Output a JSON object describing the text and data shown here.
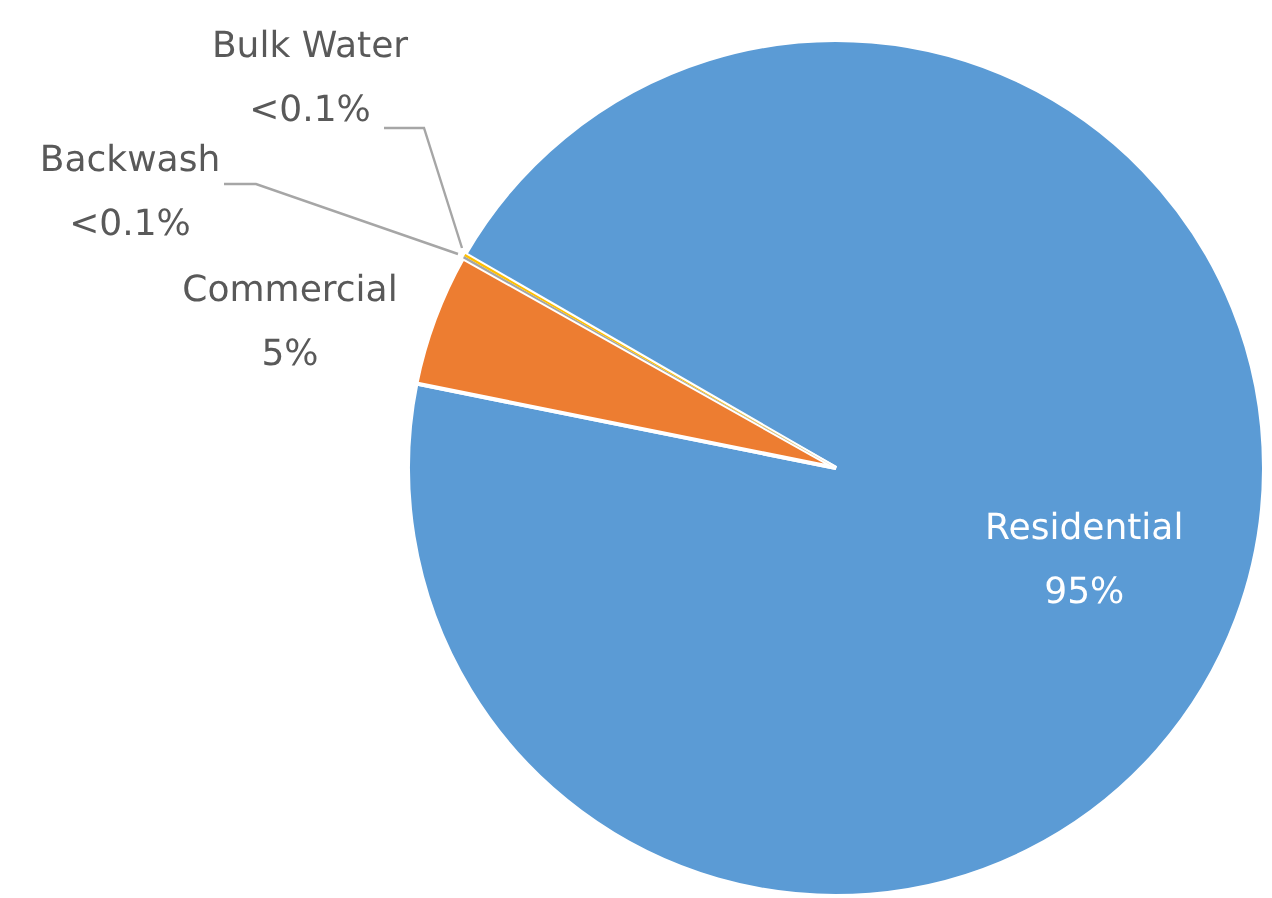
{
  "chart_data": {
    "type": "pie",
    "categories": [
      "Residential",
      "Commercial",
      "Backwash",
      "Bulk Water"
    ],
    "values": [
      95,
      5,
      0.09,
      0.09
    ],
    "colors": [
      "#5b9bd5",
      "#ed7d31",
      "#a5a5a5",
      "#ffc000"
    ],
    "value_labels": [
      "95%",
      "5%",
      "<0.1%",
      "<0.1%"
    ],
    "legend": false
  }
}
